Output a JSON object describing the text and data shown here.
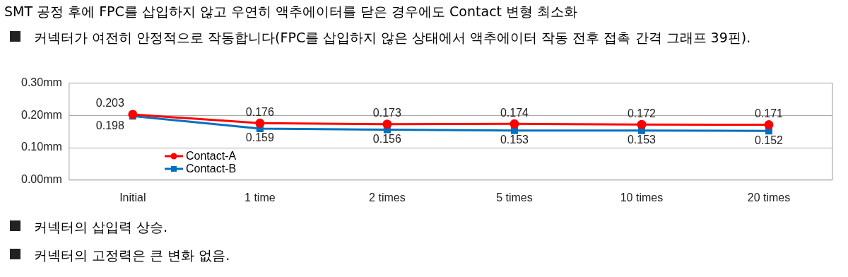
{
  "chart_data": {
    "type": "line",
    "title": "SMT 공정 후에 FPC를 삽입하지 않고 우연히 액추에이터를 닫은 경우에도 Contact 변형 최소화",
    "subtitle": "커넥터가 여전히 안정적으로 작동합니다(FPC를 삽입하지 않은 상태에서 액추에이터 작동 전후 접촉 간격 그래프 39핀).",
    "categories": [
      "Initial",
      "1 time",
      "2 times",
      "5 times",
      "10 times",
      "20 times"
    ],
    "series": [
      {
        "name": "Contact-A",
        "color": "#ff0000",
        "marker": "circle",
        "values": [
          0.203,
          0.176,
          0.173,
          0.174,
          0.172,
          0.171
        ]
      },
      {
        "name": "Contact-B",
        "color": "#0070c0",
        "marker": "square",
        "values": [
          0.198,
          0.159,
          0.156,
          0.153,
          0.153,
          0.152
        ]
      }
    ],
    "ylim": [
      0,
      0.3
    ],
    "yticks": [
      {
        "value": 0,
        "label": "0.00mm"
      },
      {
        "value": 0.1,
        "label": "0.10mm"
      },
      {
        "value": 0.2,
        "label": "0.20mm"
      },
      {
        "value": 0.3,
        "label": "0.30mm"
      }
    ],
    "grid": "y",
    "legend": "bottom left",
    "data_labels": true,
    "annotations": [
      "커넥터의 삽입력 상승.",
      "커넥터의 고정력은 큰 변화 없음."
    ]
  }
}
